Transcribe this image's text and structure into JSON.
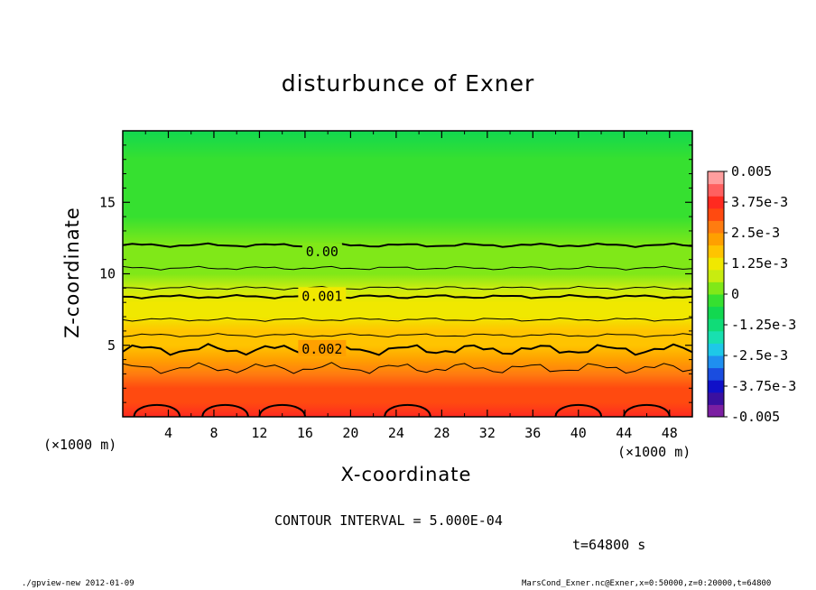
{
  "chart_data": {
    "type": "heatmap",
    "title": "disturbunce of Exner",
    "xlabel": "X-coordinate",
    "ylabel": "Z-coordinate",
    "x_unit": "(×1000 m)",
    "y_unit": "(×1000 m)",
    "xlim": [
      0,
      50
    ],
    "ylim": [
      0,
      20
    ],
    "x_ticks": [
      "4",
      "8",
      "12",
      "16",
      "20",
      "24",
      "28",
      "32",
      "36",
      "40",
      "44",
      "48"
    ],
    "y_ticks": [
      "5",
      "10",
      "15"
    ],
    "contour_labels": [
      {
        "text": "0.00",
        "x": 17.5,
        "z": 11.6
      },
      {
        "text": "0.001",
        "x": 17.5,
        "z": 8.5
      },
      {
        "text": "0.002",
        "x": 17.5,
        "z": 4.8
      }
    ],
    "contour_interval": "CONTOUR INTERVAL = 5.000E-04",
    "time": "t=64800 s",
    "colorbar": {
      "labels": [
        "0.005",
        "3.75e-3",
        "2.5e-3",
        "1.25e-3",
        "0",
        "-1.25e-3",
        "-2.5e-3",
        "-3.75e-3",
        "-0.005"
      ],
      "range": [
        -0.005,
        0.005
      ],
      "colors": [
        "#7b1fa2",
        "#3a10a0",
        "#1010c8",
        "#1a4de0",
        "#1f8ff0",
        "#1ec8e8",
        "#18e0b0",
        "#10dc78",
        "#12d850",
        "#36e030",
        "#80e818",
        "#c8ec10",
        "#f0e800",
        "#ffc400",
        "#ffa000",
        "#ff7c10",
        "#ff4a10",
        "#ff2a20",
        "#ff6060",
        "#ff9e9e"
      ]
    },
    "contour_rows": [
      {
        "z": 1.0,
        "value": 0.0033
      },
      {
        "z": 2.0,
        "value": 0.003
      },
      {
        "z": 3.0,
        "value": 0.0026
      },
      {
        "z": 4.0,
        "value": 0.0023
      },
      {
        "z": 5.0,
        "value": 0.0019
      },
      {
        "z": 6.0,
        "value": 0.0016
      },
      {
        "z": 7.0,
        "value": 0.0013
      },
      {
        "z": 8.0,
        "value": 0.001
      },
      {
        "z": 9.0,
        "value": 0.0008
      },
      {
        "z": 10.0,
        "value": 0.0005
      },
      {
        "z": 11.0,
        "value": 0.0002
      },
      {
        "z": 12.0,
        "value": 0.0
      },
      {
        "z": 14.0,
        "value": -0.0002
      },
      {
        "z": 16.0,
        "value": -0.0004
      },
      {
        "z": 18.0,
        "value": -0.0005
      },
      {
        "z": 20.0,
        "value": -0.0006
      }
    ]
  },
  "footer": {
    "left": "./gpview-new  2012-01-09",
    "right": "MarsCond_Exner.nc@Exner,x=0:50000,z=0:20000,t=64800"
  }
}
